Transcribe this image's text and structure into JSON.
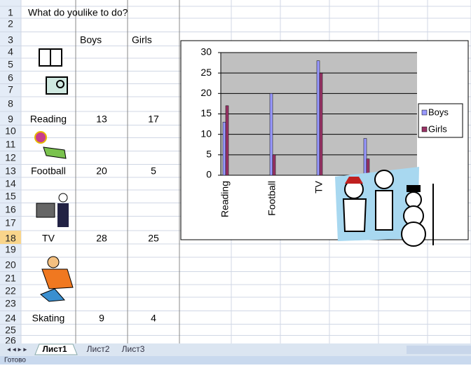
{
  "sheet": {
    "row_numbers": [
      1,
      2,
      3,
      4,
      5,
      6,
      7,
      8,
      9,
      10,
      11,
      12,
      13,
      14,
      15,
      16,
      17,
      18,
      19,
      20,
      21,
      22,
      23,
      24,
      25,
      26
    ],
    "cells": {
      "A1": "What do youlike to do?",
      "B3": "Boys",
      "C3": "Girls",
      "A9": "Reading",
      "B9": 13,
      "C9": 17,
      "A13": "Football",
      "B13": 20,
      "C13": 5,
      "A18": "TV",
      "B18": 28,
      "C18": 25,
      "A24": "Skating",
      "B24": 9,
      "C24": 4
    }
  },
  "chart_data": {
    "type": "bar",
    "categories": [
      "Reading",
      "Football",
      "TV",
      null
    ],
    "series": [
      {
        "name": "Boys",
        "color": "#9999ff",
        "values": [
          13,
          20,
          28,
          9
        ]
      },
      {
        "name": "Girls",
        "color": "#993366",
        "values": [
          17,
          5,
          25,
          4
        ]
      }
    ],
    "ylim": [
      0,
      30
    ],
    "yticks": [
      0,
      5,
      10,
      15,
      20,
      25,
      30
    ],
    "grid": true,
    "legend": "right"
  },
  "tabs": [
    "Лист1",
    "Лист2",
    "Лист3"
  ],
  "status": "Готово"
}
